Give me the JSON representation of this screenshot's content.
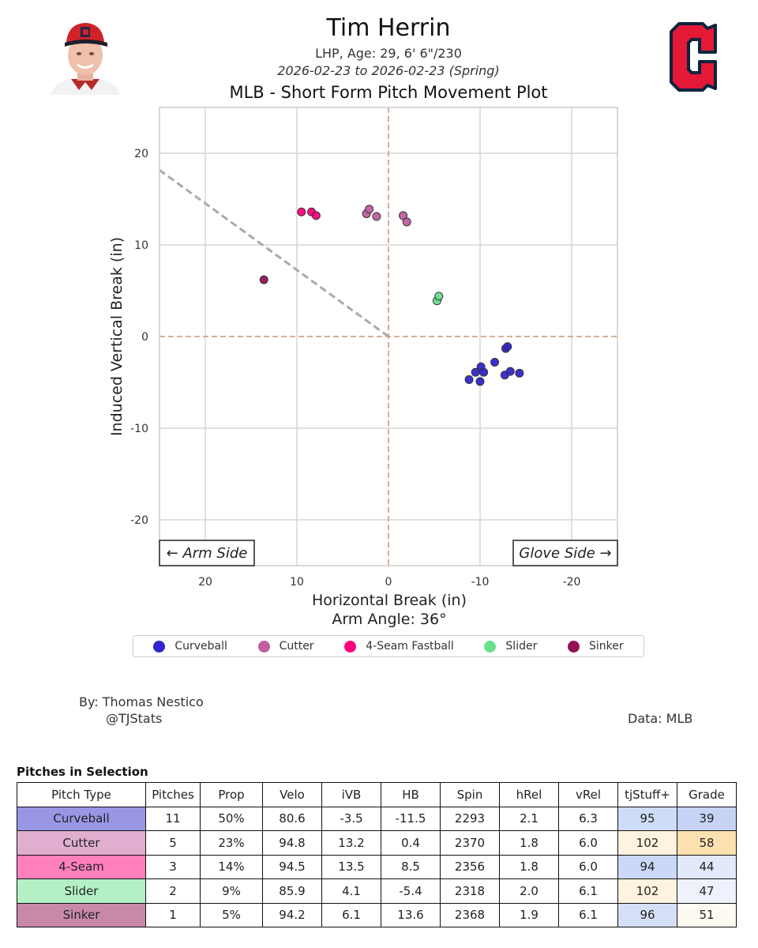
{
  "header": {
    "player_name": "Tim Herrin",
    "player_info": "LHP, Age: 29, 6' 6\"/230",
    "date_range": "2026-02-23 to 2026-02-23 (Spring)",
    "plot_title": "MLB - Short Form Pitch Movement Plot",
    "headshot_icon": "player-headshot",
    "team_logo_icon": "cleveland-c-logo"
  },
  "chart_data": {
    "type": "scatter",
    "title": "MLB - Short Form Pitch Movement Plot",
    "xlabel": "Horizontal Break (in)",
    "ylabel": "Induced Vertical Break (in)",
    "subtitle_below_x": "Arm Angle: 36°",
    "xlim": [
      25,
      -25
    ],
    "ylim": [
      -25,
      25
    ],
    "xticks": [
      20,
      10,
      0,
      -10,
      -20
    ],
    "yticks": [
      20,
      10,
      0,
      -10,
      -20
    ],
    "xtick_labels": [
      "20",
      "10",
      "0",
      "-10",
      "-20"
    ],
    "ytick_labels": [
      "20",
      "10",
      "0",
      "-10",
      "-20"
    ],
    "grid": true,
    "arm_angle_deg": 36,
    "annotations": {
      "left": "← Arm Side",
      "right": "Glove Side →"
    },
    "legend_position": "bottom",
    "series": [
      {
        "name": "Curveball",
        "color": "#3025ce",
        "points": [
          [
            -8.8,
            -4.7
          ],
          [
            -9.5,
            -3.9
          ],
          [
            -10.1,
            -3.3
          ],
          [
            -10.4,
            -3.9
          ],
          [
            -10.0,
            -4.9
          ],
          [
            -11.6,
            -2.8
          ],
          [
            -12.8,
            -1.3
          ],
          [
            -13.0,
            -1.1
          ],
          [
            -12.7,
            -4.2
          ],
          [
            -13.3,
            -3.8
          ],
          [
            -14.3,
            -4.0
          ]
        ]
      },
      {
        "name": "Cutter",
        "color": "#c25ea0",
        "points": [
          [
            2.4,
            13.4
          ],
          [
            2.1,
            13.9
          ],
          [
            1.3,
            13.1
          ],
          [
            -1.6,
            13.2
          ],
          [
            -2.0,
            12.5
          ]
        ]
      },
      {
        "name": "4-Seam Fastball",
        "color": "#ff007b",
        "points": [
          [
            9.5,
            13.6
          ],
          [
            8.4,
            13.6
          ],
          [
            7.9,
            13.2
          ]
        ]
      },
      {
        "name": "Slider",
        "color": "#67e18d",
        "points": [
          [
            -5.3,
            3.9
          ],
          [
            -5.5,
            4.4
          ]
        ]
      },
      {
        "name": "Sinker",
        "color": "#911353",
        "points": [
          [
            13.6,
            6.2
          ]
        ]
      }
    ]
  },
  "credits": {
    "by": "By: Thomas Nestico",
    "handle": "@TJStats",
    "data_source": "Data: MLB"
  },
  "table": {
    "title": "Pitches in Selection",
    "columns": [
      "Pitch Type",
      "Pitches",
      "Prop",
      "Velo",
      "iVB",
      "HB",
      "Spin",
      "hRel",
      "vRel",
      "tjStuff+",
      "Grade"
    ],
    "rows": [
      {
        "cells": [
          "Curveball",
          "11",
          "50%",
          "80.6",
          "-3.5",
          "-11.5",
          "2293",
          "2.1",
          "6.3",
          "95",
          "39"
        ],
        "type_color": "#9a96e6",
        "stuff_color": "#cfdcf8",
        "grade_color": "#c6d3f5"
      },
      {
        "cells": [
          "Cutter",
          "5",
          "23%",
          "94.8",
          "13.2",
          "0.4",
          "2370",
          "1.8",
          "6.0",
          "102",
          "58"
        ],
        "type_color": "#e0afd0",
        "stuff_color": "#fdf3e0",
        "grade_color": "#fce1b0"
      },
      {
        "cells": [
          "4-Seam",
          "3",
          "14%",
          "94.5",
          "13.5",
          "8.5",
          "2356",
          "1.8",
          "6.0",
          "94",
          "44"
        ],
        "type_color": "#ff80bd",
        "stuff_color": "#cbd8f7",
        "grade_color": "#e1e9fa"
      },
      {
        "cells": [
          "Slider",
          "2",
          "9%",
          "85.9",
          "4.1",
          "-5.4",
          "2318",
          "2.0",
          "6.1",
          "102",
          "47"
        ],
        "type_color": "#b3f0c6",
        "stuff_color": "#fdf3e0",
        "grade_color": "#edf2fc"
      },
      {
        "cells": [
          "Sinker",
          "1",
          "5%",
          "94.2",
          "6.1",
          "13.6",
          "2368",
          "1.9",
          "6.1",
          "96",
          "51"
        ],
        "type_color": "#c889a9",
        "stuff_color": "#d5e0f8",
        "grade_color": "#fdfaf2"
      }
    ]
  }
}
